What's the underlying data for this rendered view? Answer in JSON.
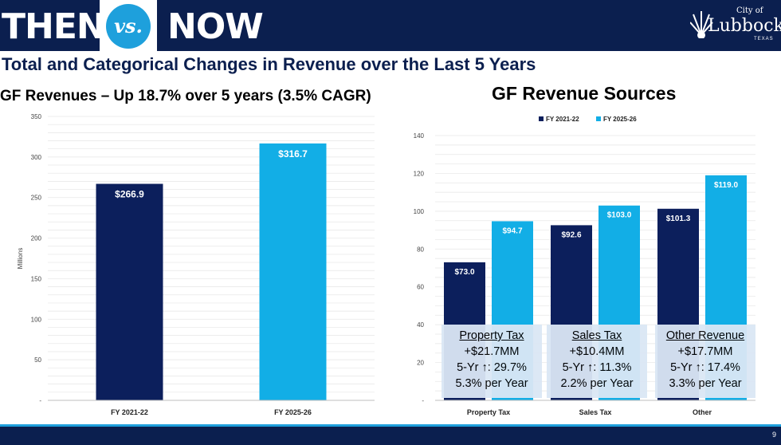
{
  "header": {
    "left_word": "THEN",
    "vs": "vs.",
    "right_word": "NOW",
    "logo": {
      "city_of": "City of",
      "name": "Lubbock",
      "state": "TEXAS",
      "icon": "sun-logo-icon"
    }
  },
  "page_title": "Total and Categorical Changes in Revenue over the Last 5 Years",
  "footer": {
    "page_number": "9"
  },
  "colors": {
    "dark_navy": "#0c1f5c",
    "light_blue": "#12aee6",
    "header_bg": "#0b1f4f"
  },
  "callouts": [
    {
      "title": "Property Tax",
      "line1": "+$21.7MM",
      "line2": "5-Yr ↑: 29.7%",
      "line3": "5.3% per Year"
    },
    {
      "title": "Sales Tax",
      "line1": "+$10.4MM",
      "line2": "5-Yr ↑: 11.3%",
      "line3": "2.2% per Year"
    },
    {
      "title": "Other Revenue",
      "line1": "+$17.7MM",
      "line2": "5-Yr ↑: 17.4%",
      "line3": "3.3% per Year"
    }
  ],
  "chart_data": [
    {
      "type": "bar",
      "title": "GF Revenues – Up 18.7% over 5 years (3.5% CAGR)",
      "ylabel": "Millions",
      "ylim": [
        0,
        350
      ],
      "yticks": [
        0,
        50,
        100,
        150,
        200,
        250,
        300,
        350
      ],
      "ytick_labels": [
        "-",
        "50",
        "100",
        "150",
        "200",
        "250",
        "300",
        "350"
      ],
      "categories": [
        "FY 2021-22",
        "FY 2025-26"
      ],
      "values": [
        266.9,
        316.7
      ],
      "value_labels": [
        "$266.9",
        "$316.7"
      ],
      "colors": [
        "#0c1f5c",
        "#12aee6"
      ],
      "grid": true
    },
    {
      "type": "bar",
      "title": "GF Revenue Sources",
      "ylim": [
        0,
        140
      ],
      "yticks": [
        0,
        20,
        40,
        60,
        80,
        100,
        120,
        140
      ],
      "ytick_labels": [
        "-",
        "20",
        "40",
        "60",
        "80",
        "100",
        "120",
        "140"
      ],
      "categories": [
        "Property Tax",
        "Sales Tax",
        "Other"
      ],
      "legend_position": "top",
      "grid": true,
      "series": [
        {
          "name": "FY 2021-22",
          "values": [
            73.0,
            92.6,
            101.3
          ],
          "value_labels": [
            "$73.0",
            "$92.6",
            "$101.3"
          ],
          "color": "#0c1f5c"
        },
        {
          "name": "FY 2025-26",
          "values": [
            94.7,
            103.0,
            119.0
          ],
          "value_labels": [
            "$94.7",
            "$103.0",
            "$119.0"
          ],
          "color": "#12aee6"
        }
      ]
    }
  ]
}
